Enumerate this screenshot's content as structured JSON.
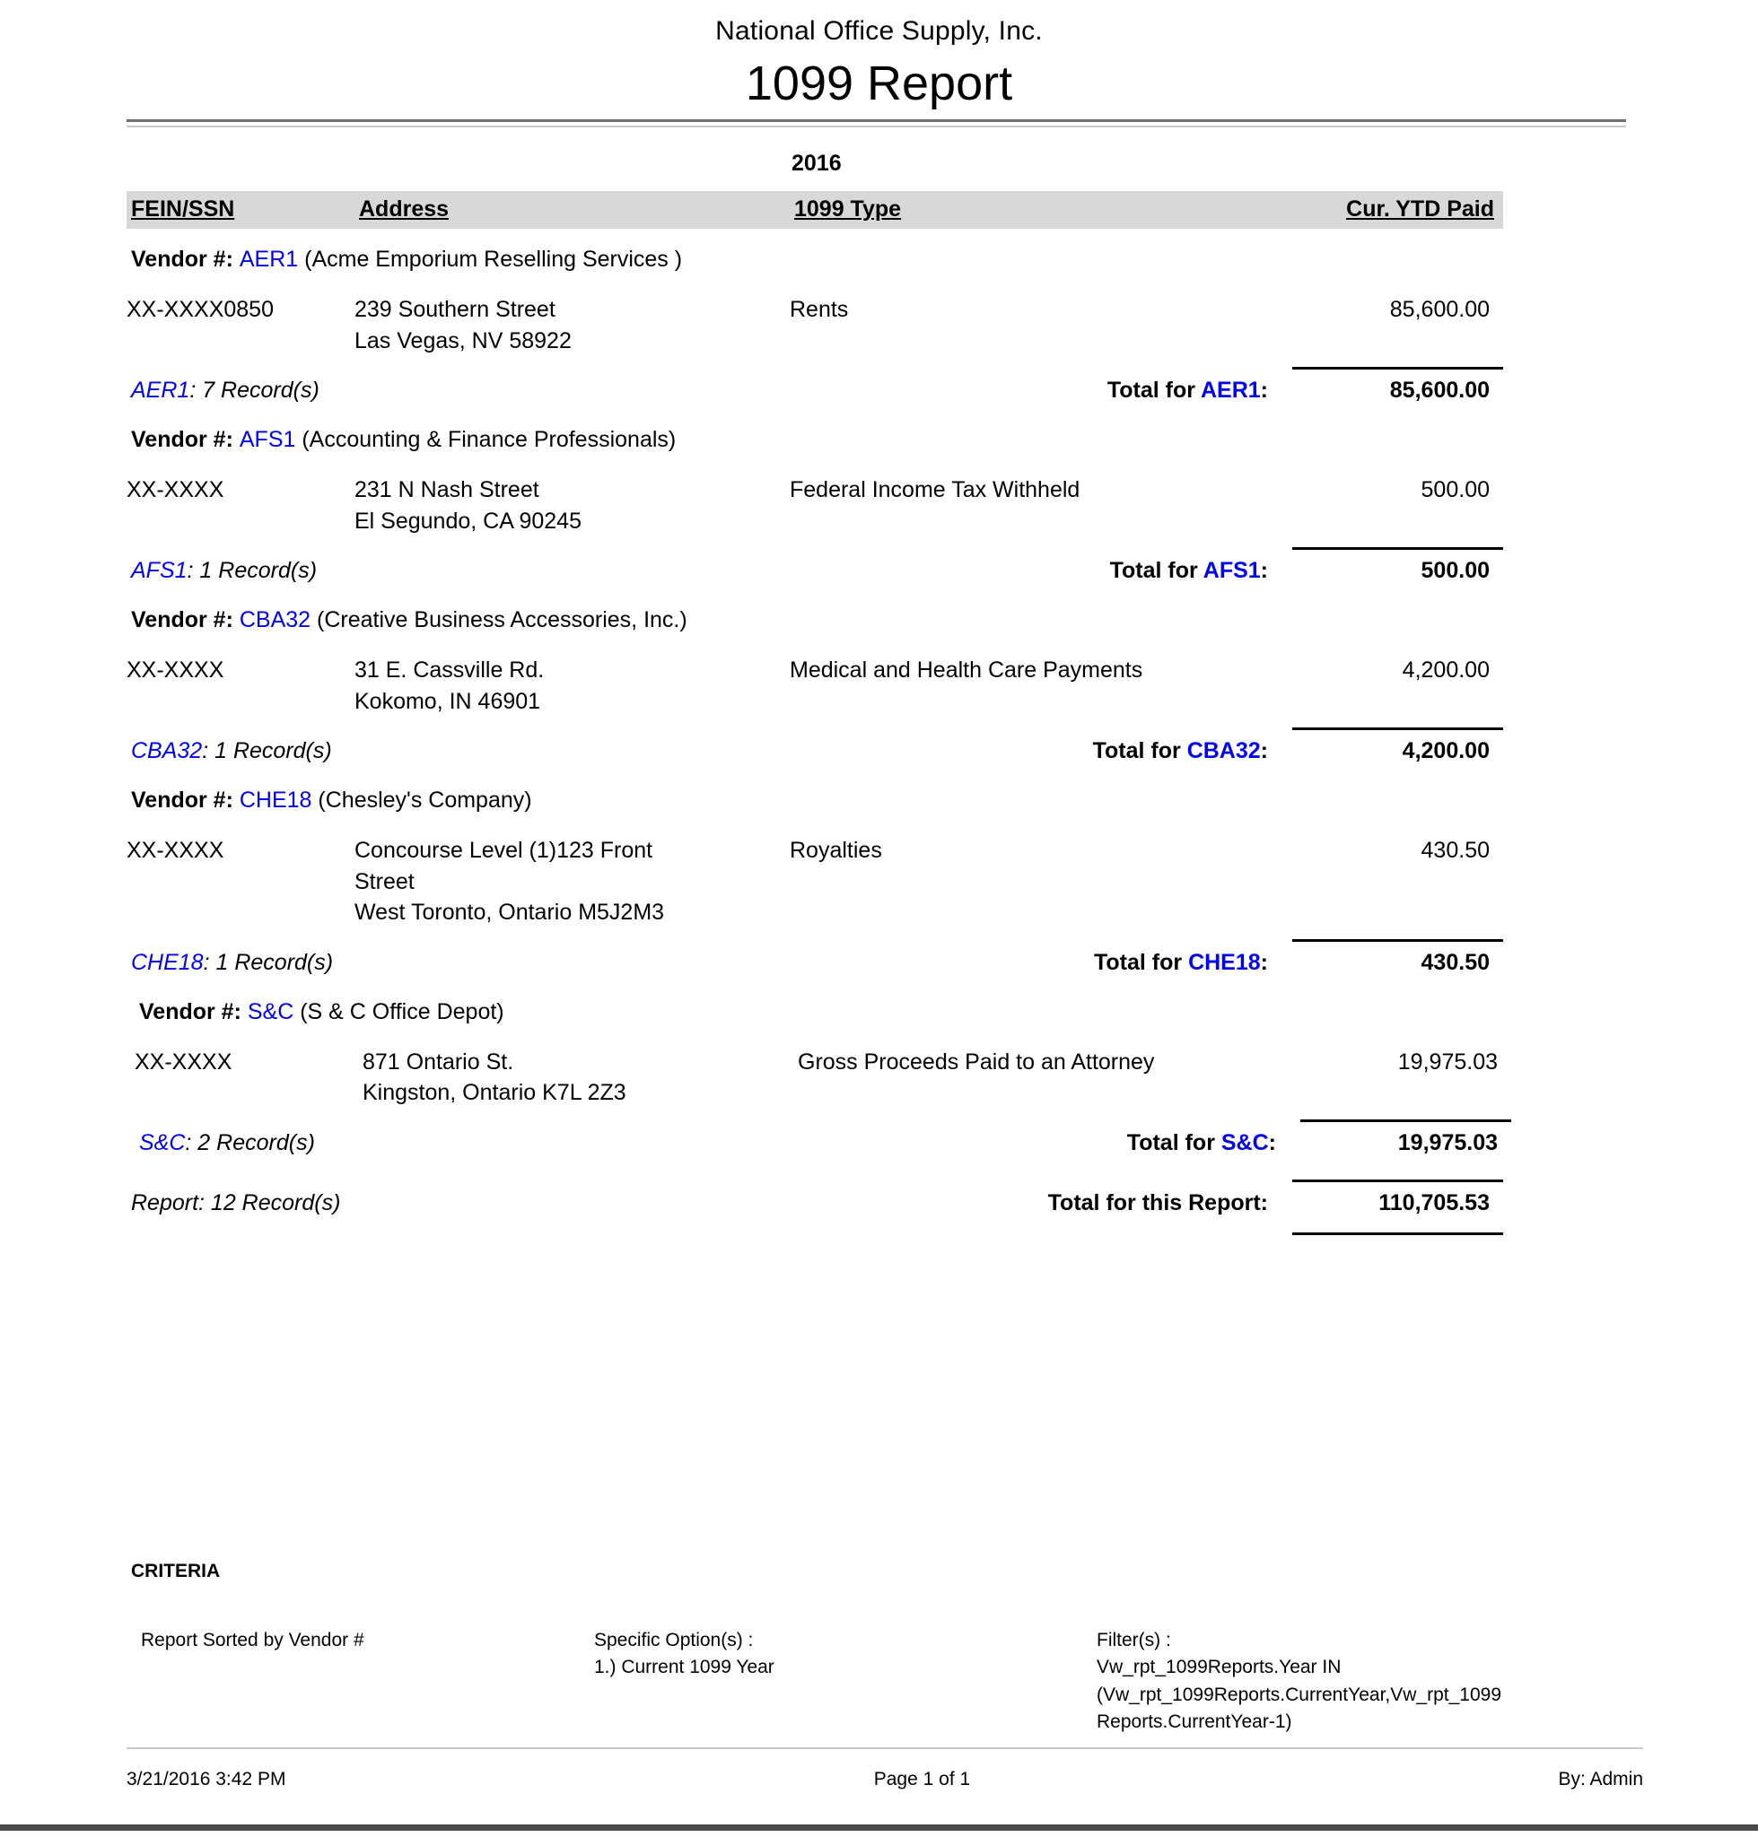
{
  "report": {
    "company": "National Office Supply, Inc.",
    "title": "1099 Report",
    "year": "2016",
    "columns": {
      "fein": "FEIN/SSN",
      "address": "Address",
      "type": "1099 Type",
      "paid": "Cur. YTD Paid"
    },
    "labels": {
      "vendor_prefix": "Vendor #:",
      "total_for": "Total for "
    },
    "vendors": [
      {
        "code": "AER1",
        "name": "(Acme Emporium Reselling Services )",
        "rows": [
          {
            "fein": "XX-XXXX0850",
            "address_lines": [
              "239 Southern Street",
              "Las Vegas, NV 58922"
            ],
            "type": "Rents",
            "amount": "85,600.00"
          }
        ],
        "records_suffix": ": 7 Record(s)",
        "total": "85,600.00",
        "indent": false
      },
      {
        "code": "AFS1",
        "name": "(Accounting & Finance Professionals)",
        "rows": [
          {
            "fein": "XX-XXXX",
            "address_lines": [
              "231 N Nash Street",
              "El Segundo, CA 90245"
            ],
            "type": "Federal Income Tax Withheld",
            "amount": "500.00"
          }
        ],
        "records_suffix": ": 1 Record(s)",
        "total": "500.00",
        "indent": false
      },
      {
        "code": "CBA32",
        "name": "(Creative Business Accessories, Inc.)",
        "rows": [
          {
            "fein": "XX-XXXX",
            "address_lines": [
              "31 E. Cassville Rd.",
              "Kokomo, IN 46901"
            ],
            "type": "Medical and Health Care Payments",
            "amount": "4,200.00"
          }
        ],
        "records_suffix": ": 1 Record(s)",
        "total": "4,200.00",
        "indent": false
      },
      {
        "code": "CHE18",
        "name": "(Chesley's Company)",
        "rows": [
          {
            "fein": "XX-XXXX",
            "address_lines": [
              "Concourse Level (1)123 Front",
              "Street",
              "West Toronto, Ontario M5J2M3"
            ],
            "type": "Royalties",
            "amount": "430.50"
          }
        ],
        "records_suffix": ": 1 Record(s)",
        "total": "430.50",
        "indent": false
      },
      {
        "code": "S&C",
        "name": "(S & C Office Depot)",
        "rows": [
          {
            "fein": "XX-XXXX",
            "address_lines": [
              "871 Ontario St.",
              "Kingston, Ontario K7L 2Z3"
            ],
            "type": "Gross Proceeds Paid to an Attorney",
            "amount": "19,975.03"
          }
        ],
        "records_suffix": ": 2 Record(s)",
        "total": "19,975.03",
        "indent": true
      }
    ],
    "summary": {
      "records": "Report: 12 Record(s)",
      "total_label": "Total for this Report:",
      "total": "110,705.53"
    },
    "criteria": {
      "heading": "CRITERIA",
      "sorted": "Report Sorted by Vendor #",
      "options_label": "Specific Option(s) :",
      "options": [
        "1.) Current 1099 Year"
      ],
      "filters_label": "Filter(s) :",
      "filters": [
        "Vw_rpt_1099Reports.Year IN",
        "(Vw_rpt_1099Reports.CurrentYear,Vw_rpt_1099",
        "Reports.CurrentYear-1)"
      ]
    },
    "footer": {
      "datetime": "3/21/2016 3:42 PM",
      "page": "Page 1 of 1",
      "by": "By: Admin"
    },
    "colors": {
      "accent_blue": "#0000f2",
      "header_band": "#d8d8d8"
    }
  }
}
